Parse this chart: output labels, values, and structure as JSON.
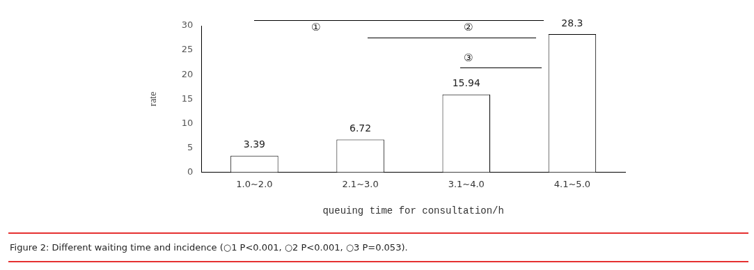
{
  "chart_data": {
    "type": "bar",
    "categories": [
      "1.0~2.0",
      "2.1~3.0",
      "3.1~4.0",
      "4.1~5.0"
    ],
    "values": [
      3.39,
      6.72,
      15.94,
      28.3
    ],
    "color": "#ffffff",
    "ylim": [
      0,
      30
    ],
    "yticks": [
      0,
      5,
      10,
      15,
      20,
      25,
      30
    ],
    "xlabel": "queuing time for consultation/h",
    "ylabel": "rate",
    "data_labels": true,
    "grid": false,
    "legend": false,
    "annotations": [
      "①",
      "②",
      "③",
      "Figure 2: Different waiting time and incidence (○1 P<0.001, ○2 P<0.001, ○3 P=0.053)."
    ]
  }
}
